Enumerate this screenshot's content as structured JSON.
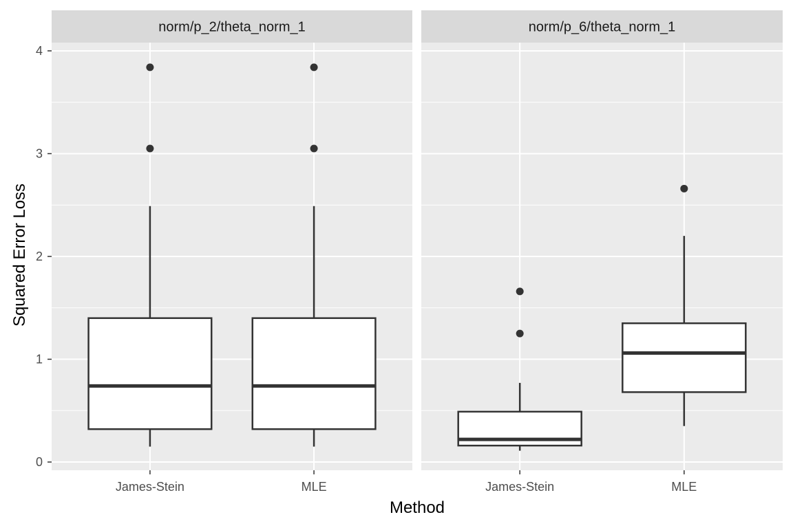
{
  "chart_data": {
    "type": "boxplot",
    "xlabel": "Method",
    "ylabel": "Squared Error Loss",
    "ylim": [
      -0.08,
      4.08
    ],
    "y_ticks": [
      0,
      1,
      2,
      3,
      4
    ],
    "categories": [
      "James-Stein",
      "MLE"
    ],
    "legend": "none",
    "grid": true,
    "colors": {
      "panel": "#ebebeb",
      "strip": "#d9d9d9",
      "grid": "#ffffff",
      "box_fill": "#ffffff",
      "box_line": "#333333"
    },
    "panels": [
      {
        "title": "norm/p_2/theta_norm_1",
        "boxes": [
          {
            "category": "James-Stein",
            "min": 0.15,
            "q1": 0.32,
            "median": 0.74,
            "q3": 1.4,
            "max": 2.49,
            "outliers": [
              3.05,
              3.84
            ]
          },
          {
            "category": "MLE",
            "min": 0.15,
            "q1": 0.32,
            "median": 0.74,
            "q3": 1.4,
            "max": 2.49,
            "outliers": [
              3.05,
              3.84
            ]
          }
        ]
      },
      {
        "title": "norm/p_6/theta_norm_1",
        "boxes": [
          {
            "category": "James-Stein",
            "min": 0.11,
            "q1": 0.16,
            "median": 0.22,
            "q3": 0.49,
            "max": 0.77,
            "outliers": [
              1.25,
              1.66
            ]
          },
          {
            "category": "MLE",
            "min": 0.35,
            "q1": 0.68,
            "median": 1.06,
            "q3": 1.35,
            "max": 2.2,
            "outliers": [
              2.66
            ]
          }
        ]
      }
    ]
  }
}
